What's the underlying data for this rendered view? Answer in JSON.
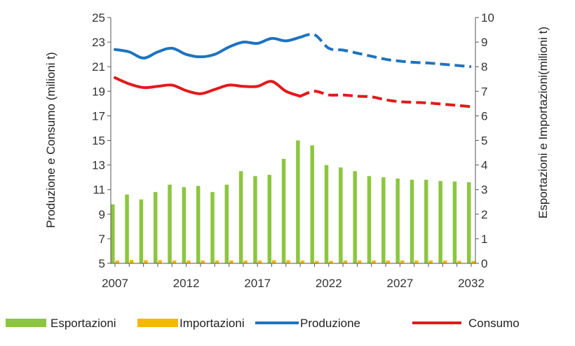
{
  "chart_data": {
    "type": "bar+line",
    "title": "",
    "x": [
      2007,
      2008,
      2009,
      2010,
      2011,
      2012,
      2013,
      2014,
      2015,
      2016,
      2017,
      2018,
      2019,
      2020,
      2021,
      2022,
      2023,
      2024,
      2025,
      2026,
      2027,
      2028,
      2029,
      2030,
      2031,
      2032
    ],
    "xticks": [
      "2007",
      "2012",
      "2017",
      "2022",
      "2027",
      "2032"
    ],
    "ylabel_left": "Produzione e Consumo (milioni t)",
    "ylabel_right": "Esportazioni e Importazioni(milioni t)",
    "ylim_left": [
      5,
      25
    ],
    "yticks_left": [
      "5",
      "7",
      "9",
      "11",
      "13",
      "15",
      "17",
      "19",
      "21",
      "23",
      "25"
    ],
    "ylim_right": [
      0,
      10
    ],
    "yticks_right": [
      "0",
      "1",
      "2",
      "3",
      "4",
      "5",
      "6",
      "7",
      "8",
      "9",
      "10"
    ],
    "bars": [
      {
        "name": "Esportazioni",
        "axis": "right",
        "color": "#8cc63f",
        "values": [
          2.4,
          2.8,
          2.6,
          2.9,
          3.2,
          3.1,
          3.15,
          2.9,
          3.2,
          3.75,
          3.55,
          3.6,
          4.25,
          5.0,
          4.8,
          4.0,
          3.9,
          3.75,
          3.55,
          3.5,
          3.45,
          3.4,
          3.4,
          3.35,
          3.33,
          3.3
        ]
      },
      {
        "name": "Importazioni",
        "axis": "right",
        "color": "#f5b800",
        "values": [
          0.12,
          0.14,
          0.13,
          0.13,
          0.12,
          0.12,
          0.12,
          0.12,
          0.12,
          0.12,
          0.12,
          0.13,
          0.13,
          0.12,
          0.1,
          0.1,
          0.12,
          0.12,
          0.12,
          0.12,
          0.12,
          0.12,
          0.12,
          0.12,
          0.1,
          0.1
        ]
      }
    ],
    "lines": [
      {
        "name": "Produzione",
        "axis": "left",
        "color": "#1e73be",
        "actual_x": [
          2007,
          2008,
          2009,
          2010,
          2011,
          2012,
          2013,
          2014,
          2015,
          2016,
          2017,
          2018,
          2019,
          2020
        ],
        "actual_y": [
          22.4,
          22.2,
          21.7,
          22.2,
          22.5,
          22.0,
          21.8,
          22.0,
          22.6,
          23.0,
          22.9,
          23.3,
          23.1,
          23.4
        ],
        "forecast_x": [
          2020,
          2021,
          2022,
          2023,
          2024,
          2025,
          2026,
          2027,
          2028,
          2029,
          2030,
          2031,
          2032
        ],
        "forecast_y": [
          23.4,
          23.6,
          22.5,
          22.35,
          22.1,
          21.85,
          21.6,
          21.45,
          21.35,
          21.3,
          21.2,
          21.1,
          21.0
        ]
      },
      {
        "name": "Consumo",
        "axis": "left",
        "color": "#e3191b",
        "actual_x": [
          2007,
          2008,
          2009,
          2010,
          2011,
          2012,
          2013,
          2014,
          2015,
          2016,
          2017,
          2018,
          2019,
          2020
        ],
        "actual_y": [
          20.1,
          19.6,
          19.3,
          19.4,
          19.5,
          19.05,
          18.8,
          19.15,
          19.5,
          19.4,
          19.4,
          19.8,
          19.0,
          18.6
        ],
        "forecast_x": [
          2020,
          2021,
          2022,
          2023,
          2024,
          2025,
          2026,
          2027,
          2028,
          2029,
          2030,
          2031,
          2032
        ],
        "forecast_y": [
          18.6,
          19.0,
          18.7,
          18.7,
          18.6,
          18.55,
          18.3,
          18.15,
          18.1,
          18.05,
          17.95,
          17.85,
          17.75
        ]
      }
    ],
    "legend": {
      "position": "bottom",
      "items": [
        "Esportazioni",
        "Importazioni",
        "Produzione",
        "Consumo"
      ]
    },
    "grid": false
  }
}
